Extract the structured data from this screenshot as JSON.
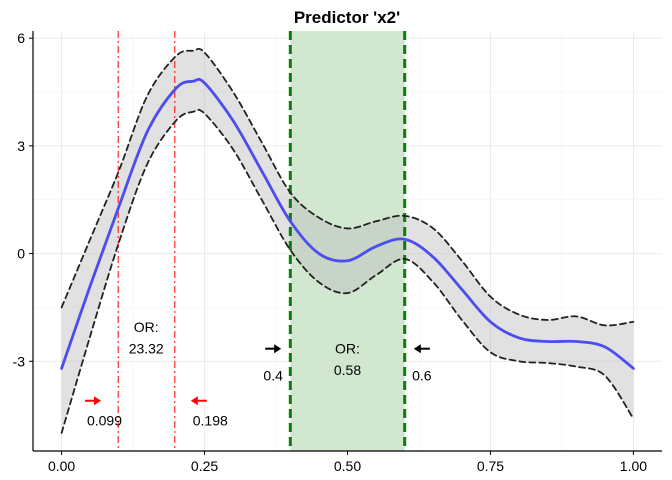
{
  "chart_data": {
    "type": "line",
    "title": "Predictor 'x2'",
    "xlabel": "",
    "ylabel": "",
    "xlim": [
      -0.05,
      1.05
    ],
    "ylim": [
      -5.5,
      6.2
    ],
    "x_ticks": [
      0.0,
      0.25,
      0.5,
      0.75,
      1.0
    ],
    "x_tick_labels": [
      "0.00",
      "0.25",
      "0.50",
      "0.75",
      "1.00"
    ],
    "y_ticks": [
      -3,
      0,
      3,
      6
    ],
    "y_tick_labels": [
      "-3",
      "0",
      "3",
      "6"
    ],
    "grid": true,
    "x": [
      0.0,
      0.05,
      0.1,
      0.15,
      0.2,
      0.23,
      0.25,
      0.3,
      0.35,
      0.4,
      0.45,
      0.5,
      0.55,
      0.6,
      0.65,
      0.7,
      0.75,
      0.8,
      0.85,
      0.9,
      0.95,
      1.0
    ],
    "series": [
      {
        "values": [
          -3.2,
          -0.9,
          1.3,
          3.4,
          4.6,
          4.8,
          4.75,
          3.7,
          2.3,
          0.9,
          0.0,
          -0.2,
          0.2,
          0.4,
          -0.1,
          -1.0,
          -1.9,
          -2.35,
          -2.45,
          -2.45,
          -2.6,
          -3.2
        ],
        "color": "#4b4ded",
        "style": "solid"
      },
      {
        "values": [
          -1.5,
          0.4,
          2.3,
          4.4,
          5.5,
          5.65,
          5.6,
          4.5,
          3.1,
          1.7,
          1.0,
          0.7,
          0.9,
          1.05,
          0.7,
          -0.2,
          -1.2,
          -1.7,
          -1.85,
          -1.75,
          -2.0,
          -1.9
        ],
        "color": "#222222",
        "style": "dashed"
      },
      {
        "values": [
          -5.0,
          -2.3,
          0.3,
          2.5,
          3.7,
          3.95,
          3.9,
          2.9,
          1.5,
          0.1,
          -0.8,
          -1.1,
          -0.6,
          -0.15,
          -0.8,
          -1.85,
          -2.75,
          -3.0,
          -3.05,
          -3.15,
          -3.4,
          -4.6
        ],
        "color": "#222222",
        "style": "dashed"
      }
    ],
    "ribbon_color": "#e0e0e0",
    "shaded_region": {
      "x": [
        0.4,
        0.6
      ],
      "color": "#cfe6cc"
    },
    "vlines": [
      {
        "x": 0.099,
        "color": "#ff0000",
        "style": "dashdot"
      },
      {
        "x": 0.198,
        "color": "#ff0000",
        "style": "dashdot"
      },
      {
        "x": 0.4,
        "color": "#0a7d0a",
        "style": "dashed"
      },
      {
        "x": 0.6,
        "color": "#0a7d0a",
        "style": "dashed"
      }
    ],
    "annotations": [
      {
        "label": "0.099",
        "x": 0.075,
        "y": -4.65,
        "arrow": "right",
        "arrow_x": 0.055,
        "arrow_y": -4.1,
        "color": "#ff0000"
      },
      {
        "label": "0.198",
        "x": 0.26,
        "y": -4.65,
        "arrow": "left",
        "arrow_x": 0.24,
        "arrow_y": -4.1,
        "color": "#ff0000"
      },
      {
        "label": "0.4",
        "x": 0.37,
        "y": -3.4,
        "arrow": "right",
        "arrow_x": 0.37,
        "arrow_y": -2.65,
        "color": "#000000"
      },
      {
        "label": "0.6",
        "x": 0.63,
        "y": -3.4,
        "arrow": "left",
        "arrow_x": 0.63,
        "arrow_y": -2.65,
        "color": "#000000"
      }
    ],
    "or_labels": [
      {
        "line1": "OR:",
        "line2": "23.32",
        "x": 0.148
      },
      {
        "line1": "OR:",
        "line2": "0.58",
        "x": 0.5
      }
    ]
  }
}
